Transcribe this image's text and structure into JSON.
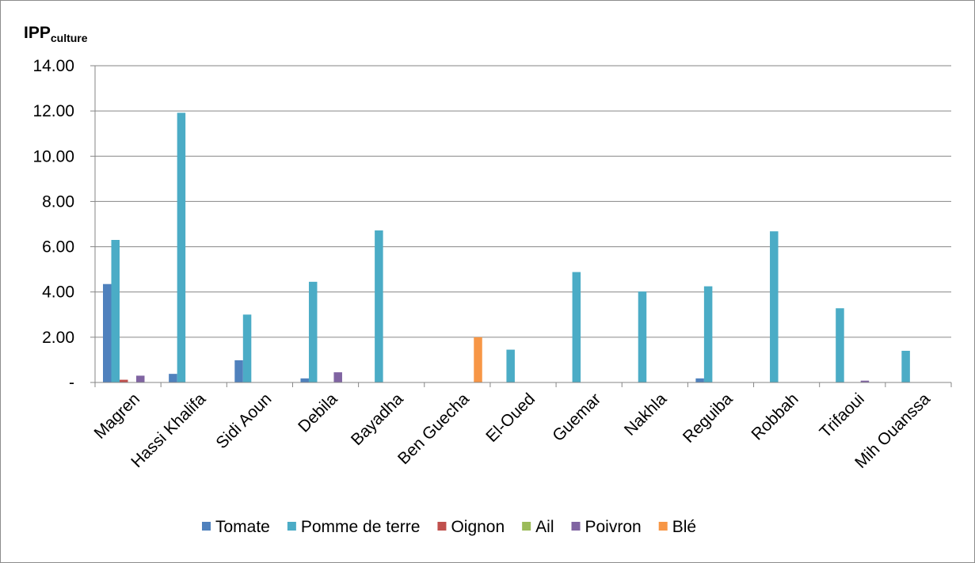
{
  "chart_data": {
    "type": "bar",
    "ylabel": "IPP",
    "ylabel_subscript": "culture",
    "ylim": [
      0,
      14
    ],
    "yticks": [
      0,
      2,
      4,
      6,
      8,
      10,
      12,
      14
    ],
    "ytick_labels": [
      "-",
      "2.00",
      "4.00",
      "6.00",
      "8.00",
      "10.00",
      "12.00",
      "14.00"
    ],
    "grid": true,
    "legend_position": "bottom",
    "categories": [
      "Magren",
      "Hassi Khalifa",
      "Sidi Aoun",
      "Debila",
      "Bayadha",
      "Ben Guecha",
      "El-Oued",
      "Guemar",
      "Nakhla",
      "Reguiba",
      "Robbah",
      "Trifaoui",
      "Mih Ouanssa"
    ],
    "series": [
      {
        "name": "Tomate",
        "color": "#4f81bd",
        "values": [
          4.35,
          0.38,
          0.98,
          0.18,
          0,
          0,
          0,
          0,
          0,
          0.18,
          0,
          0,
          0
        ]
      },
      {
        "name": "Pomme de terre",
        "color": "#4bacc6",
        "values": [
          6.3,
          11.92,
          3.0,
          4.45,
          6.72,
          0,
          1.45,
          4.88,
          4.02,
          4.25,
          6.68,
          3.28,
          1.4
        ]
      },
      {
        "name": "Oignon",
        "color": "#c0504d",
        "values": [
          0.12,
          0,
          0,
          0,
          0,
          0,
          0,
          0,
          0,
          0,
          0,
          0,
          0
        ]
      },
      {
        "name": "Ail",
        "color": "#9bbb59",
        "values": [
          0,
          0,
          0,
          0,
          0,
          0,
          0,
          0,
          0,
          0,
          0,
          0,
          0
        ]
      },
      {
        "name": "Poivron",
        "color": "#8064a2",
        "values": [
          0.3,
          0,
          0,
          0.45,
          0,
          0,
          0,
          0,
          0,
          0,
          0,
          0.08,
          0
        ]
      },
      {
        "name": "Blé",
        "color": "#f79646",
        "values": [
          0,
          0,
          0,
          0,
          0,
          2.0,
          0,
          0,
          0,
          0,
          0,
          0,
          0
        ]
      }
    ]
  }
}
